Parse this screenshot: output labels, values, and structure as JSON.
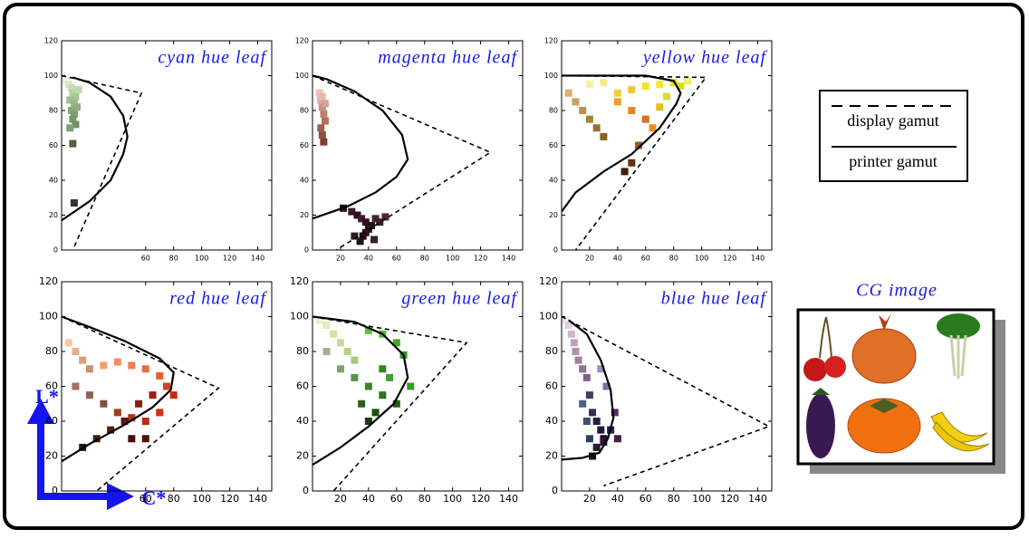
{
  "chart_data": [
    {
      "type": "line",
      "title": "cyan hue leaf",
      "xlim": [
        0,
        150
      ],
      "ylim": [
        0,
        120
      ],
      "xticks": [
        60,
        80,
        100,
        120,
        140
      ],
      "yticks": [
        0,
        20,
        40,
        60,
        80,
        100,
        120
      ],
      "series": [
        {
          "name": "display gamut",
          "style": "dashed",
          "x": [
            0,
            57,
            8
          ],
          "values": [
            100,
            90,
            0
          ]
        },
        {
          "name": "printer gamut",
          "style": "solid",
          "x": [
            0,
            20,
            35,
            44,
            47,
            44,
            35,
            20,
            8
          ],
          "values": [
            17,
            28,
            40,
            55,
            65,
            77,
            88,
            96,
            99
          ]
        }
      ],
      "points": {
        "x": [
          3,
          5,
          7,
          8,
          10,
          12,
          4,
          6,
          9,
          11,
          7,
          9,
          8,
          10,
          6,
          8,
          9
        ],
        "values": [
          97,
          95,
          93,
          90,
          88,
          92,
          99,
          86,
          84,
          82,
          80,
          78,
          75,
          72,
          70,
          61,
          27
        ],
        "colors": [
          "#e8f0d8",
          "#d8e8c8",
          "#c8dcb8",
          "#b8d0a8",
          "#a8c498",
          "#c0d8b0",
          "#f0f4e8",
          "#a0c090",
          "#98b888",
          "#90b080",
          "#88a878",
          "#80a070",
          "#789868",
          "#709060",
          "#80a070",
          "#506040",
          "#303828"
        ]
      }
    },
    {
      "type": "line",
      "title": "magenta hue leaf",
      "xlim": [
        0,
        150
      ],
      "ylim": [
        0,
        120
      ],
      "xticks": [
        20,
        40,
        60,
        80,
        100,
        120,
        140
      ],
      "yticks": [
        0,
        20,
        40,
        60,
        80,
        100,
        120
      ],
      "series": [
        {
          "name": "display gamut",
          "style": "dashed",
          "x": [
            0,
            127,
            17
          ],
          "values": [
            100,
            56,
            0
          ]
        },
        {
          "name": "printer gamut",
          "style": "solid",
          "x": [
            0,
            25,
            45,
            60,
            68,
            64,
            50,
            30,
            10,
            0
          ],
          "values": [
            18,
            25,
            33,
            42,
            52,
            66,
            80,
            91,
            98,
            100
          ]
        }
      ],
      "points": {
        "x": [
          5,
          6,
          7,
          8,
          9,
          6,
          7,
          8,
          9,
          7,
          28,
          32,
          35,
          38,
          42,
          45,
          40,
          36,
          48,
          52,
          30,
          34,
          38,
          44,
          22
        ],
        "values": [
          90,
          86,
          82,
          78,
          74,
          70,
          66,
          62,
          84,
          88,
          22,
          20,
          18,
          16,
          14,
          18,
          12,
          8,
          16,
          19,
          8,
          5,
          10,
          6,
          24
        ],
        "colors": [
          "#f0c0b8",
          "#e0a8a0",
          "#d09088",
          "#c08070",
          "#b07060",
          "#a06050",
          "#905040",
          "#804030",
          "#d8a098",
          "#e8b8b0",
          "#3a1a28",
          "#2a1020",
          "#401830",
          "#301020",
          "#201018",
          "#4a2030",
          "#281018",
          "#1a0810",
          "#382030",
          "#4a2838",
          "#301828",
          "#200c18",
          "#2a1420",
          "#3a1c2c",
          "#201020"
        ]
      }
    },
    {
      "type": "line",
      "title": "yellow hue leaf",
      "xlim": [
        0,
        150
      ],
      "ylim": [
        0,
        120
      ],
      "xticks": [
        20,
        40,
        60,
        80,
        100,
        120,
        140
      ],
      "yticks": [
        0,
        20,
        40,
        60,
        80,
        100,
        120
      ],
      "series": [
        {
          "name": "display gamut",
          "style": "dashed",
          "x": [
            0,
            103,
            10
          ],
          "values": [
            100,
            99,
            0
          ]
        },
        {
          "name": "printer gamut",
          "style": "solid",
          "x": [
            0,
            10,
            30,
            50,
            70,
            82,
            85,
            80,
            60,
            0
          ],
          "values": [
            22,
            33,
            45,
            55,
            70,
            84,
            90,
            97,
            100,
            100
          ]
        }
      ],
      "points": {
        "x": [
          5,
          10,
          15,
          20,
          25,
          30,
          40,
          50,
          60,
          70,
          80,
          85,
          90,
          20,
          30,
          40,
          50,
          60,
          55,
          50,
          45,
          65,
          70,
          75
        ],
        "values": [
          90,
          85,
          80,
          75,
          70,
          65,
          90,
          92,
          94,
          95,
          96,
          94,
          97,
          95,
          96,
          85,
          80,
          75,
          60,
          50,
          45,
          70,
          82,
          88
        ],
        "colors": [
          "#d8b070",
          "#c8a060",
          "#b89050",
          "#a88040",
          "#987030",
          "#886020",
          "#f0d040",
          "#f0c830",
          "#f8e020",
          "#f0e830",
          "#e8e810",
          "#e0d820",
          "#f0f060",
          "#f8f0a0",
          "#f8e890",
          "#e8a030",
          "#e08828",
          "#d87020",
          "#a05818",
          "#603010",
          "#402008",
          "#e89020",
          "#e8c020",
          "#e0d830"
        ]
      }
    },
    {
      "type": "line",
      "title": "red hue leaf",
      "xlim": [
        0,
        150
      ],
      "ylim": [
        0,
        120
      ],
      "xticks": [
        60,
        80,
        100,
        120,
        140
      ],
      "yticks": [
        0,
        20,
        40,
        60,
        80,
        100,
        120
      ],
      "series": [
        {
          "name": "display gamut",
          "style": "dashed",
          "x": [
            0,
            112,
            25
          ],
          "values": [
            100,
            59,
            0
          ]
        },
        {
          "name": "printer gamut",
          "style": "solid",
          "x": [
            0,
            20,
            45,
            65,
            78,
            80,
            70,
            45,
            20,
            0
          ],
          "values": [
            17,
            27,
            38,
            48,
            58,
            68,
            76,
            86,
            94,
            100
          ]
        }
      ],
      "points": {
        "x": [
          5,
          10,
          15,
          20,
          30,
          40,
          50,
          60,
          70,
          10,
          20,
          30,
          40,
          50,
          60,
          70,
          80,
          75,
          65,
          55,
          45,
          35,
          25,
          15,
          60,
          50
        ],
        "values": [
          85,
          80,
          75,
          70,
          72,
          74,
          72,
          70,
          66,
          60,
          55,
          50,
          45,
          42,
          40,
          45,
          55,
          60,
          55,
          50,
          40,
          35,
          30,
          25,
          30,
          30
        ],
        "colors": [
          "#f8c8a0",
          "#e8b090",
          "#d8a080",
          "#c89070",
          "#f0a070",
          "#f09060",
          "#f08050",
          "#e87040",
          "#e06030",
          "#a07060",
          "#906050",
          "#805040",
          "#a04020",
          "#b03010",
          "#c02810",
          "#d03010",
          "#c82808",
          "#d84020",
          "#a02010",
          "#802010",
          "#601808",
          "#502010",
          "#402010",
          "#301808",
          "#501008",
          "#401008"
        ]
      }
    },
    {
      "type": "line",
      "title": "green hue leaf",
      "xlim": [
        0,
        150
      ],
      "ylim": [
        0,
        120
      ],
      "xticks": [
        20,
        40,
        60,
        80,
        100,
        120,
        140
      ],
      "yticks": [
        0,
        20,
        40,
        60,
        80,
        100,
        120
      ],
      "series": [
        {
          "name": "display gamut",
          "style": "dashed",
          "x": [
            0,
            110,
            15
          ],
          "values": [
            100,
            85,
            0
          ]
        },
        {
          "name": "printer gamut",
          "style": "solid",
          "x": [
            0,
            20,
            40,
            58,
            68,
            65,
            50,
            30,
            0
          ],
          "values": [
            15,
            25,
            37,
            50,
            65,
            78,
            90,
            97,
            100
          ]
        }
      ],
      "points": {
        "x": [
          5,
          10,
          15,
          20,
          25,
          30,
          40,
          50,
          60,
          65,
          10,
          20,
          30,
          40,
          50,
          60,
          70,
          45,
          40,
          35,
          55,
          50
        ],
        "values": [
          98,
          95,
          90,
          85,
          80,
          75,
          92,
          90,
          85,
          78,
          80,
          70,
          65,
          60,
          55,
          50,
          60,
          45,
          40,
          50,
          65,
          70
        ],
        "colors": [
          "#f0f0c8",
          "#e8e8b8",
          "#d8e0a8",
          "#c8d898",
          "#b8d088",
          "#a8c878",
          "#60c040",
          "#50b830",
          "#40a828",
          "#309820",
          "#a0b090",
          "#80a070",
          "#609050",
          "#408030",
          "#307020",
          "#206010",
          "#30a020",
          "#205010",
          "#184008",
          "#306020",
          "#40a030",
          "#308820"
        ]
      }
    },
    {
      "type": "line",
      "title": "blue hue leaf",
      "xlim": [
        0,
        150
      ],
      "ylim": [
        0,
        120
      ],
      "xticks": [
        20,
        40,
        60,
        80,
        100,
        120,
        140
      ],
      "yticks": [
        0,
        20,
        40,
        60,
        80,
        100,
        120
      ],
      "series": [
        {
          "name": "display gamut",
          "style": "dashed",
          "x": [
            0,
            148,
            30
          ],
          "values": [
            100,
            37,
            3
          ]
        },
        {
          "name": "printer gamut",
          "style": "solid",
          "x": [
            0,
            15,
            27,
            33,
            37,
            35,
            28,
            18,
            5
          ],
          "values": [
            18,
            19,
            22,
            30,
            42,
            58,
            75,
            90,
            98
          ]
        }
      ],
      "points": {
        "x": [
          3,
          5,
          7,
          9,
          10,
          12,
          15,
          18,
          20,
          22,
          25,
          28,
          30,
          15,
          18,
          20,
          25,
          30,
          35,
          22,
          40,
          38,
          32,
          28
        ],
        "values": [
          98,
          95,
          90,
          85,
          80,
          75,
          70,
          65,
          55,
          45,
          40,
          35,
          30,
          50,
          40,
          30,
          25,
          28,
          35,
          20,
          30,
          45,
          60,
          70
        ],
        "colors": [
          "#f0e8f0",
          "#e0d0e0",
          "#d0b8c8",
          "#c0a0b8",
          "#b090a8",
          "#a08098",
          "#907090",
          "#806088",
          "#404060",
          "#303050",
          "#282040",
          "#201838",
          "#201030",
          "#506080",
          "#405070",
          "#304060",
          "#281838",
          "#301840",
          "#381848",
          "#101018",
          "#402040",
          "#503060",
          "#8070a0",
          "#a090c0"
        ]
      }
    }
  ],
  "image_title": "CG image",
  "axis_y": "L*",
  "axis_x": "C*"
}
